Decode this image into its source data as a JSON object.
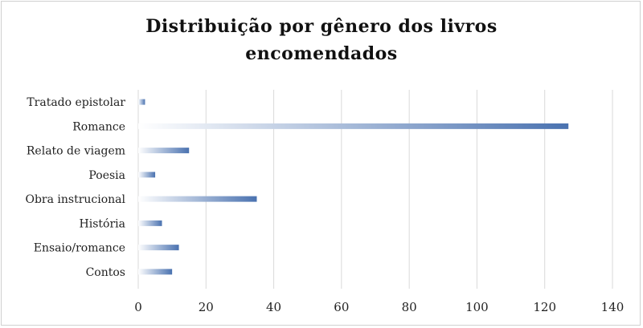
{
  "chart_data": {
    "type": "bar",
    "orientation": "horizontal",
    "title_lines": [
      "Distribuição por gênero dos livros",
      "encomendados"
    ],
    "categories": [
      "Tratado epistolar",
      "Romance",
      "Relato de viagem",
      "Poesia",
      "Obra instrucional",
      "História",
      "Ensaio/romance",
      "Contos"
    ],
    "values": [
      2,
      127,
      15,
      5,
      35,
      7,
      12,
      10
    ],
    "xlim": [
      0,
      140
    ],
    "xticks": [
      0,
      20,
      40,
      60,
      80,
      100,
      120,
      140
    ],
    "grid": "vertical",
    "bar_color": "#4a72b0",
    "bar_fade_color": "#ffffff",
    "gridline_color": "#d9d9d9"
  }
}
